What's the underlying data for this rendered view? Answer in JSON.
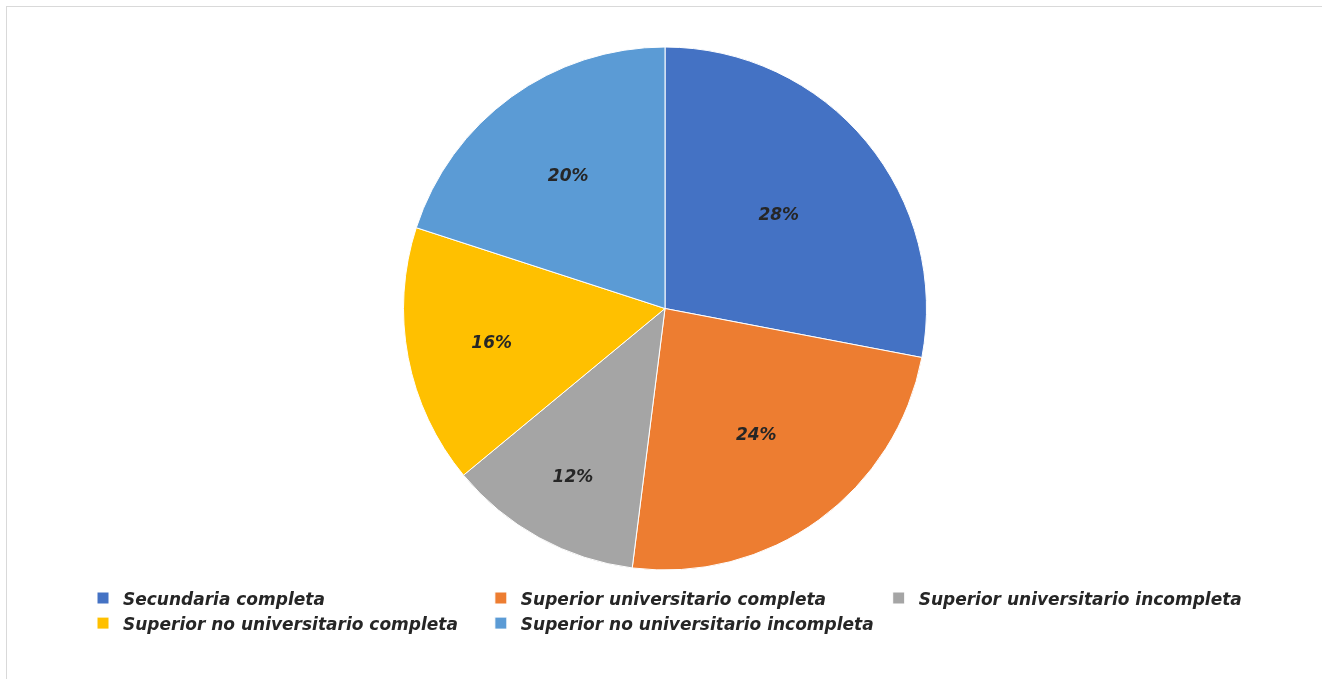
{
  "chart_data": {
    "type": "pie",
    "categories": [
      "Secundaria completa",
      "Superior universitario completa",
      "Superior universitario incompleta",
      "Superior no universitario completa",
      "Superior no universitario incompleta"
    ],
    "values": [
      28,
      24,
      12,
      16,
      20
    ],
    "value_labels": [
      "28%",
      "24%",
      "12%",
      "16%",
      "20%"
    ],
    "colors": [
      "#4472c4",
      "#ed7d31",
      "#a5a5a5",
      "#ffc000",
      "#5b9bd5"
    ],
    "legend": "bottom"
  }
}
